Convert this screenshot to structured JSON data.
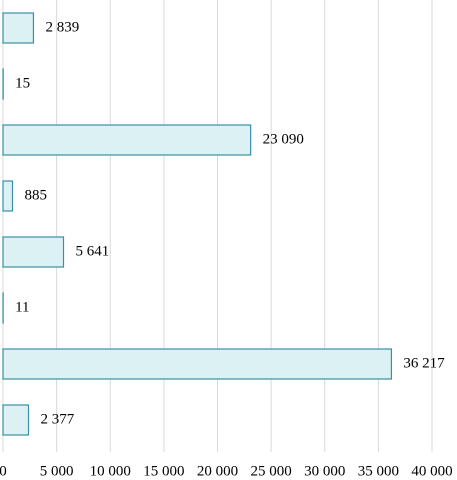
{
  "chart_data": {
    "type": "bar",
    "orientation": "horizontal",
    "categories": [
      null,
      null,
      null,
      null,
      null,
      null,
      null,
      null
    ],
    "values": [
      2839,
      15,
      23090,
      885,
      5641,
      11,
      36217,
      2377
    ],
    "value_labels": [
      "2 839",
      "15",
      "23 090",
      "885",
      "5 641",
      "11",
      "36 217",
      "2 377"
    ],
    "color": "#dcf1f4",
    "edge_color": "#3a8ea6",
    "xlim": [
      0,
      40000
    ],
    "xticks": [
      0,
      {
        "value": 5000,
        "label": "5 000"
      },
      {
        "value": 10000,
        "label": "10 000"
      },
      {
        "value": 15000,
        "label": "15 000"
      },
      {
        "value": 20000,
        "label": "20 000"
      },
      {
        "value": 25000,
        "label": "25 000"
      },
      {
        "value": 30000,
        "label": "30 000"
      },
      {
        "value": 35000,
        "label": "35 000"
      },
      {
        "value": 40000,
        "label": "40 000"
      }
    ],
    "grid": true
  }
}
